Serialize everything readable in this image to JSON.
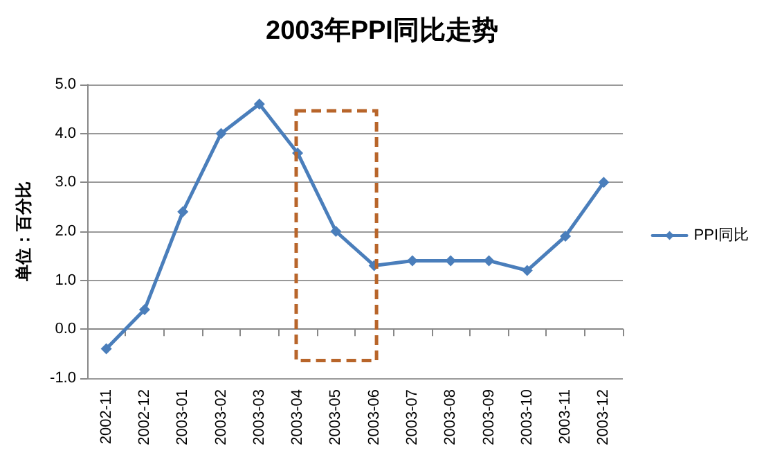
{
  "chart_data": {
    "type": "line",
    "title": "2003年PPI同比走势",
    "ylabel": "单位：百分比",
    "categories": [
      "2002-11",
      "2002-12",
      "2003-01",
      "2003-02",
      "2003-03",
      "2003-04",
      "2003-05",
      "2003-06",
      "2003-07",
      "2003-08",
      "2003-09",
      "2003-10",
      "2003-11",
      "2003-12"
    ],
    "series": [
      {
        "name": "PPI同比",
        "color": "#4a7ebb",
        "values": [
          -0.4,
          0.4,
          2.4,
          4.0,
          4.6,
          3.6,
          2.0,
          1.3,
          1.4,
          1.4,
          1.4,
          1.2,
          1.9,
          3.0
        ]
      }
    ],
    "ylim": [
      -1,
      5
    ],
    "yticks": [
      {
        "value": -1,
        "label": "-1.0"
      },
      {
        "value": 0,
        "label": "0.0"
      },
      {
        "value": 1,
        "label": "1.0"
      },
      {
        "value": 2,
        "label": "2.0"
      },
      {
        "value": 3,
        "label": "3.0"
      },
      {
        "value": 4,
        "label": "4.0"
      },
      {
        "value": 5,
        "label": "5.0"
      }
    ],
    "grid": "y",
    "legend": "right",
    "marker": "diamond",
    "line_style": "solid"
  }
}
